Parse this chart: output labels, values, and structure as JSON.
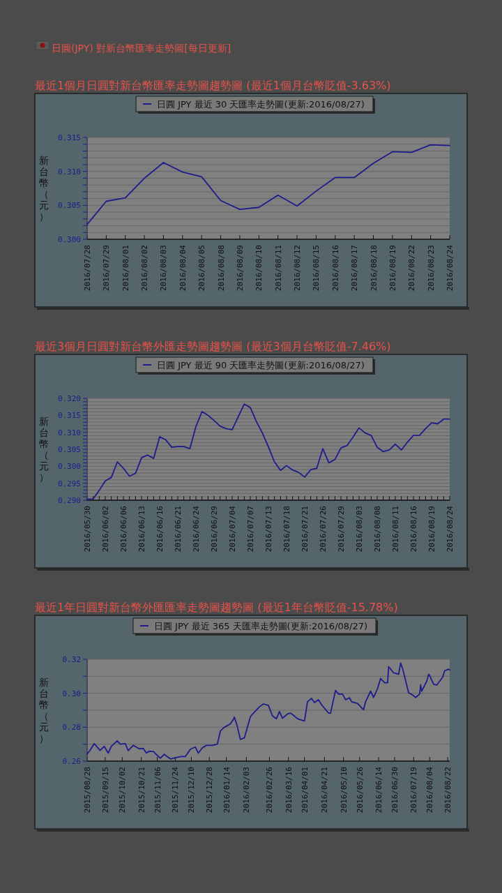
{
  "chart_data": [
    {
      "type": "line",
      "title": "最近1個月日圓對新台幣匯率走勢圖趨勢圖 (最近1個月台幣貶值-3.63%)",
      "annotations": [
        "日圓(JPY) 對新台幣匯率走勢圖[每日更新]"
      ],
      "ylabel": "新台幣（元）",
      "legend": "top",
      "grid": "y",
      "categories": [
        "2016/07/28",
        "2016/07/29",
        "2016/08/01",
        "2016/08/02",
        "2016/08/03",
        "2016/08/04",
        "2016/08/05",
        "2016/08/08",
        "2016/08/09",
        "2016/08/10",
        "2016/08/11",
        "2016/08/12",
        "2016/08/15",
        "2016/08/16",
        "2016/08/17",
        "2016/08/18",
        "2016/08/19",
        "2016/08/22",
        "2016/08/23",
        "2016/08/24"
      ],
      "series": [
        {
          "name": "日圓 JPY 最近 30 天匯率走勢圖(更新:2016/08/27)",
          "color": "#1c1c8c",
          "values": [
            0.3022,
            0.3056,
            0.3061,
            0.309,
            0.3113,
            0.3099,
            0.3092,
            0.3057,
            0.3044,
            0.3047,
            0.3065,
            0.3049,
            0.3071,
            0.3091,
            0.3091,
            0.3112,
            0.3129,
            0.3128,
            0.3139,
            0.3138
          ]
        }
      ],
      "ylim": [
        0.3,
        0.315
      ],
      "yticks": [
        {
          "value": 0.3,
          "label": "0.300"
        },
        {
          "value": 0.301,
          "label": null
        },
        {
          "value": 0.302,
          "label": null
        },
        {
          "value": 0.303,
          "label": null
        },
        {
          "value": 0.304,
          "label": null
        },
        0.305,
        {
          "value": 0.306,
          "label": null
        },
        {
          "value": 0.307,
          "label": null
        },
        {
          "value": 0.308,
          "label": null
        },
        {
          "value": 0.309,
          "label": null
        },
        {
          "value": 0.31,
          "label": "0.310"
        },
        {
          "value": 0.311,
          "label": null
        },
        {
          "value": 0.312,
          "label": null
        },
        {
          "value": 0.313,
          "label": null
        },
        {
          "value": 0.314,
          "label": null
        },
        0.315
      ]
    },
    {
      "type": "line",
      "title": "最近3個月日圓對新台幣外匯走勢圖趨勢圖 (最近3個月台幣貶值-7.46%)",
      "ylabel": "新台幣（元）",
      "legend": "top",
      "grid": "y",
      "categories": [
        "2016/05/30",
        null,
        null,
        "2016/06/02",
        null,
        null,
        "2016/06/06",
        null,
        null,
        "2016/06/13",
        null,
        null,
        "2016/06/16",
        null,
        null,
        "2016/06/21",
        null,
        null,
        "2016/06/24",
        null,
        null,
        "2016/06/29",
        null,
        null,
        "2016/07/04",
        null,
        null,
        "2016/07/07",
        null,
        null,
        "2016/07/13",
        null,
        null,
        "2016/07/18",
        null,
        null,
        "2016/07/21",
        null,
        null,
        "2016/07/26",
        null,
        null,
        "2016/07/29",
        null,
        null,
        "2016/08/03",
        null,
        null,
        "2016/08/08",
        null,
        null,
        "2016/08/11",
        null,
        null,
        "2016/08/16",
        null,
        null,
        "2016/08/19",
        null,
        null,
        "2016/08/24"
      ],
      "series": [
        {
          "name": "日圓 JPY 最近 90 天匯率走勢圖(更新:2016/08/27)",
          "color": "#1c1c8c",
          "values": [
            0.2903,
            0.2904,
            0.2929,
            0.2957,
            0.2967,
            0.3013,
            0.2994,
            0.2971,
            0.2979,
            0.3025,
            0.3033,
            0.3023,
            0.3087,
            0.3078,
            0.3056,
            0.3058,
            0.3058,
            0.3052,
            0.3117,
            0.3161,
            0.315,
            0.3135,
            0.3118,
            0.3111,
            0.3108,
            0.3146,
            0.3183,
            0.3173,
            0.3132,
            0.3098,
            0.3057,
            0.3013,
            0.2988,
            0.3002,
            0.2989,
            0.2982,
            0.2968,
            0.299,
            0.2994,
            0.3052,
            0.301,
            0.302,
            0.3054,
            0.3061,
            0.3086,
            0.3113,
            0.3098,
            0.3091,
            0.3056,
            0.3043,
            0.3048,
            0.3065,
            0.3048,
            0.3071,
            0.3091,
            0.3091,
            0.3111,
            0.3128,
            0.3125,
            0.3139,
            0.3139
          ]
        }
      ],
      "ylim": [
        0.29,
        0.32
      ],
      "yticks": [
        {
          "value": 0.29,
          "label": "0.290"
        },
        {
          "value": 0.291,
          "label": null
        },
        {
          "value": 0.292,
          "label": null
        },
        {
          "value": 0.293,
          "label": null
        },
        {
          "value": 0.294,
          "label": null
        },
        0.295,
        {
          "value": 0.296,
          "label": null
        },
        {
          "value": 0.297,
          "label": null
        },
        {
          "value": 0.298,
          "label": null
        },
        {
          "value": 0.299,
          "label": null
        },
        {
          "value": 0.3,
          "label": "0.300"
        },
        {
          "value": 0.301,
          "label": null
        },
        {
          "value": 0.302,
          "label": null
        },
        {
          "value": 0.303,
          "label": null
        },
        {
          "value": 0.304,
          "label": null
        },
        0.305,
        {
          "value": 0.306,
          "label": null
        },
        {
          "value": 0.307,
          "label": null
        },
        {
          "value": 0.308,
          "label": null
        },
        {
          "value": 0.309,
          "label": null
        },
        {
          "value": 0.31,
          "label": "0.310"
        },
        {
          "value": 0.311,
          "label": null
        },
        {
          "value": 0.312,
          "label": null
        },
        {
          "value": 0.313,
          "label": null
        },
        {
          "value": 0.314,
          "label": null
        },
        0.315,
        {
          "value": 0.316,
          "label": null
        },
        {
          "value": 0.317,
          "label": null
        },
        {
          "value": 0.318,
          "label": null
        },
        {
          "value": 0.319,
          "label": null
        },
        {
          "value": 0.32,
          "label": "0.320"
        }
      ]
    },
    {
      "type": "line",
      "title": "最近1年日圓對新台幣外匯匯率走勢圖趨勢圖 (最近1年台幣貶值-15.78%)",
      "ylabel": "新台幣（元）",
      "legend": "top",
      "grid": "y",
      "x": [
        "2015-08-28",
        "2015-08-31",
        "2015-09-04",
        "2015-09-10",
        "2015-09-14",
        "2015-09-18",
        "2015-09-21",
        "2015-09-27",
        "2015-09-30",
        "2015-10-05",
        "2015-10-08",
        "2015-10-13",
        "2015-10-19",
        "2015-10-23",
        "2015-10-26",
        "2015-10-29",
        "2015-11-02",
        "2015-11-09",
        "2015-11-13",
        "2015-11-19",
        "2015-11-24",
        "2015-11-30",
        "2015-12-04",
        "2015-12-09",
        "2015-12-14",
        "2015-12-17",
        "2015-12-21",
        "2015-12-25",
        "2015-12-31",
        "2016-01-05",
        "2016-01-08",
        "2016-01-11",
        "2016-01-13",
        "2016-01-18",
        "2016-01-21",
        "2016-01-22",
        "2016-01-25",
        "2016-01-28",
        "2016-02-01",
        "2016-02-07",
        "2016-02-12",
        "2016-02-16",
        "2016-02-20",
        "2016-02-25",
        "2016-02-29",
        "2016-03-04",
        "2016-03-07",
        "2016-03-10",
        "2016-03-15",
        "2016-03-18",
        "2016-03-21",
        "2016-03-25",
        "2016-03-30",
        "2016-04-01",
        "2016-04-04",
        "2016-04-08",
        "2016-04-11",
        "2016-04-15",
        "2016-04-18",
        "2016-04-25",
        "2016-04-27",
        "2016-05-02",
        "2016-05-05",
        "2016-05-09",
        "2016-05-12",
        "2016-05-16",
        "2016-05-18",
        "2016-05-24",
        "2016-05-30",
        "2016-06-01",
        "2016-06-06",
        "2016-06-09",
        "2016-06-13",
        "2016-06-16",
        "2016-06-20",
        "2016-06-23",
        "2016-06-24",
        "2016-06-29",
        "2016-07-04",
        "2016-07-06",
        "2016-07-08",
        "2016-07-14",
        "2016-07-18",
        "2016-07-21",
        "2016-07-25",
        "2016-07-26",
        "2016-07-27",
        "2016-08-01",
        "2016-08-03",
        "2016-08-04",
        "2016-08-08",
        "2016-08-11",
        "2016-08-17",
        "2016-08-19",
        "2016-08-23",
        "2016-08-24"
      ],
      "series": [
        {
          "name": "日圓 JPY 最近 365 天匯率走勢圖(更新:2016/08/27)",
          "color": "#1c1c8c",
          "values": [
            0.2642,
            0.2665,
            0.2703,
            0.2663,
            0.2687,
            0.2647,
            0.2687,
            0.272,
            0.27,
            0.2703,
            0.2662,
            0.2693,
            0.2673,
            0.2675,
            0.2648,
            0.2658,
            0.2657,
            0.2617,
            0.264,
            0.2613,
            0.262,
            0.2627,
            0.2627,
            0.267,
            0.2683,
            0.2647,
            0.2678,
            0.2693,
            0.2693,
            0.27,
            0.2777,
            0.2795,
            0.2803,
            0.282,
            0.2845,
            0.286,
            0.2803,
            0.2728,
            0.2737,
            0.2862,
            0.2895,
            0.292,
            0.2937,
            0.2928,
            0.2867,
            0.285,
            0.2892,
            0.2853,
            0.2878,
            0.2883,
            0.287,
            0.285,
            0.284,
            0.2837,
            0.295,
            0.297,
            0.2945,
            0.2962,
            0.2933,
            0.2883,
            0.2882,
            0.3017,
            0.2995,
            0.2995,
            0.2962,
            0.2973,
            0.295,
            0.294,
            0.2903,
            0.295,
            0.3012,
            0.2975,
            0.3028,
            0.3087,
            0.3062,
            0.3062,
            0.3157,
            0.312,
            0.3112,
            0.3178,
            0.3145,
            0.3003,
            0.299,
            0.2975,
            0.2995,
            0.305,
            0.3012,
            0.307,
            0.3112,
            0.3103,
            0.3053,
            0.3048,
            0.3095,
            0.3133,
            0.3142,
            0.3137
          ]
        }
      ],
      "xlim": [
        "2015-08-28",
        "2016-08-24"
      ],
      "xticks": [
        {
          "value": "2015-08-28",
          "label": "2015/08/28"
        },
        {
          "value": "2015-09-15",
          "label": "2015/09/15"
        },
        {
          "value": "2015-10-02",
          "label": "2015/10/02"
        },
        {
          "value": "2015-10-21",
          "label": "2015/10/21"
        },
        {
          "value": "2015-11-06",
          "label": "2015/11/06"
        },
        {
          "value": "2015-11-24",
          "label": "2015/11/24"
        },
        {
          "value": "2015-12-10",
          "label": "2015/12/10"
        },
        {
          "value": "2015-12-28",
          "label": "2015/12/28"
        },
        {
          "value": "2016-01-14",
          "label": "2016/01/14"
        },
        {
          "value": "2016-02-03",
          "label": "2016/02/03"
        },
        {
          "value": "2016-02-26",
          "label": "2016/02/26"
        },
        {
          "value": "2016-03-16",
          "label": "2016/03/16"
        },
        {
          "value": "2016-04-01",
          "label": "2016/04/01"
        },
        {
          "value": "2016-04-21",
          "label": "2016/04/21"
        },
        {
          "value": "2016-05-10",
          "label": "2016/05/10"
        },
        {
          "value": "2016-05-26",
          "label": "2016/05/26"
        },
        {
          "value": "2016-06-14",
          "label": "2016/06/14"
        },
        {
          "value": "2016-06-30",
          "label": "2016/06/30"
        },
        {
          "value": "2016-07-19",
          "label": "2016/07/19"
        },
        {
          "value": "2016-08-04",
          "label": "2016/08/04"
        },
        {
          "value": "2016-08-22",
          "label": "2016/08/22"
        }
      ],
      "ylim": [
        0.26,
        0.32
      ],
      "yticks": [
        0.26,
        {
          "value": 0.27,
          "label": null
        },
        0.28,
        {
          "value": 0.29,
          "label": null
        },
        {
          "value": 0.3,
          "label": "0.30"
        },
        {
          "value": 0.31,
          "label": null
        },
        0.32
      ]
    }
  ]
}
